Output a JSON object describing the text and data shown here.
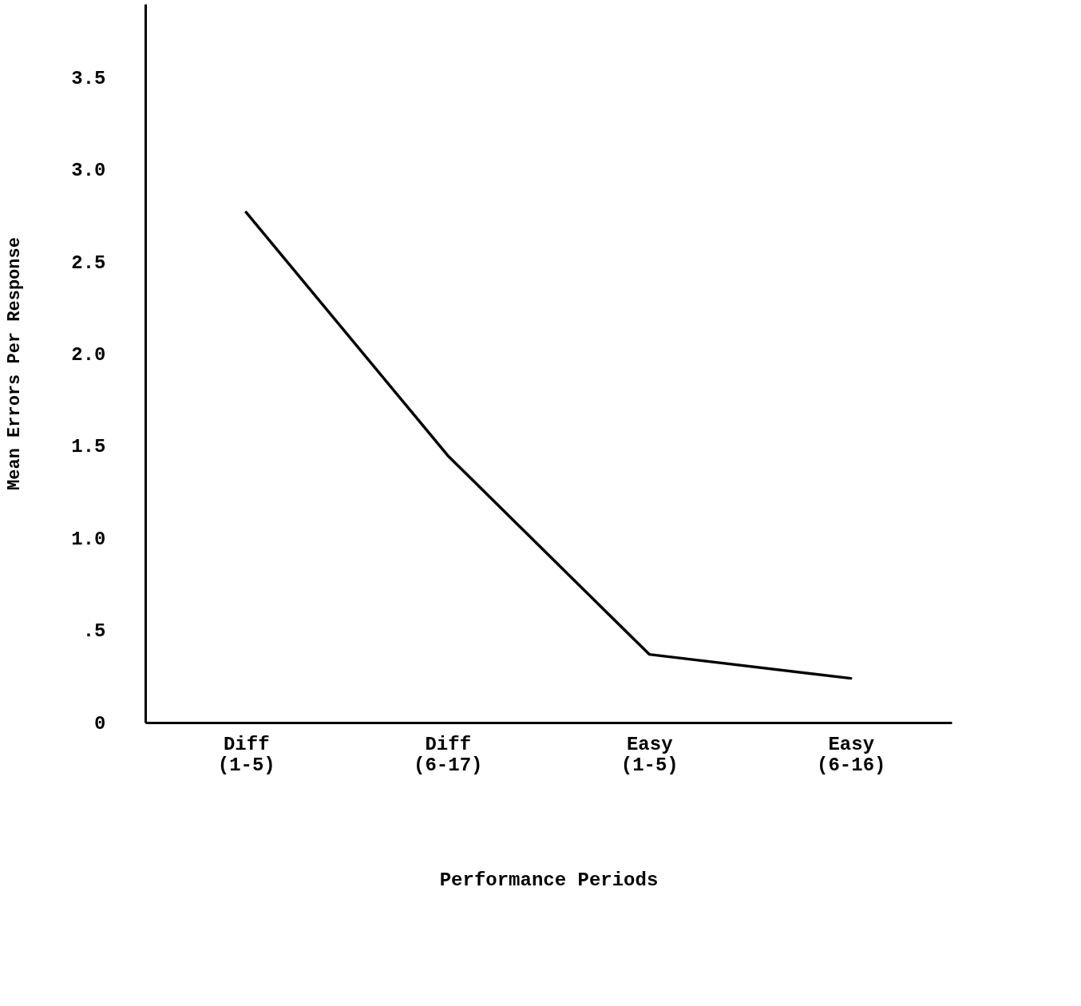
{
  "chart_data": {
    "type": "line",
    "xlabel": "Performance Periods",
    "ylabel": "Mean Errors Per Response",
    "categories": [
      "Diff\n(1-5)",
      "Diff\n(6-17)",
      "Easy\n(1-5)",
      "Easy\n(6-16)"
    ],
    "series": [
      {
        "color": "#000000",
        "values": [
          2.77,
          1.45,
          0.37,
          0.24
        ]
      }
    ],
    "ylim": [
      0,
      3.9
    ],
    "yticks": [
      {
        "value": 0,
        "label": "0"
      },
      {
        "value": 0.5,
        "label": ".5"
      },
      {
        "value": 1,
        "label": "1.0"
      },
      {
        "value": 1.5,
        "label": "1.5"
      },
      {
        "value": 2,
        "label": "2.0"
      },
      {
        "value": 2.5,
        "label": "2.5"
      },
      {
        "value": 3,
        "label": "3.0"
      },
      {
        "value": 3.5,
        "label": "3.5"
      }
    ],
    "grid": false,
    "marker": "none",
    "line_style": "solid"
  }
}
